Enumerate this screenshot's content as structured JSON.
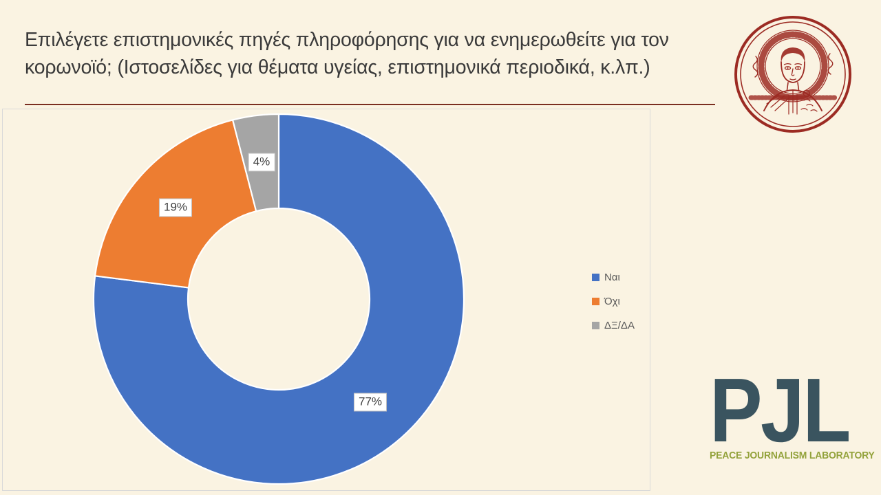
{
  "slide": {
    "background": "#FAF3E2",
    "title": "Επιλέγετε επιστημονικές πηγές πληροφόρησης για να ενημερωθείτε για τον κορωνοϊό; (Ιστοσελίδες για θέματα υγείας, επιστημονικά περιοδικά, κ.λπ.)",
    "title_color": "#3A3A3A",
    "divider_color": "#7A2E21"
  },
  "chart_data": {
    "type": "pie",
    "subtype": "donut",
    "title": "",
    "categories": [
      "Ναι",
      "Όχι",
      "ΔΞ/ΔΑ"
    ],
    "values": [
      77,
      19,
      4
    ],
    "data_labels": [
      "77%",
      "19%",
      "4%"
    ],
    "colors": [
      "#4472C4",
      "#ED7D31",
      "#A5A5A5"
    ],
    "slice_border_color": "#FFFFFF",
    "legend_position": "right",
    "start_angle_deg": 0,
    "direction": "clockwise",
    "hole_ratio": 0.49,
    "label_text_color": "#404040",
    "legend_text_color": "#595959"
  },
  "logos": {
    "auth_emblem": {
      "name": "aristotle-university-saint-demetrius-emblem",
      "color": "#9C2B23"
    },
    "pjl": {
      "acronym": "PJL",
      "subtitle": "PEACE JOURNALISM LABORATORY",
      "acronym_color": "#3A545F",
      "subtitle_color": "#93A23B"
    }
  }
}
